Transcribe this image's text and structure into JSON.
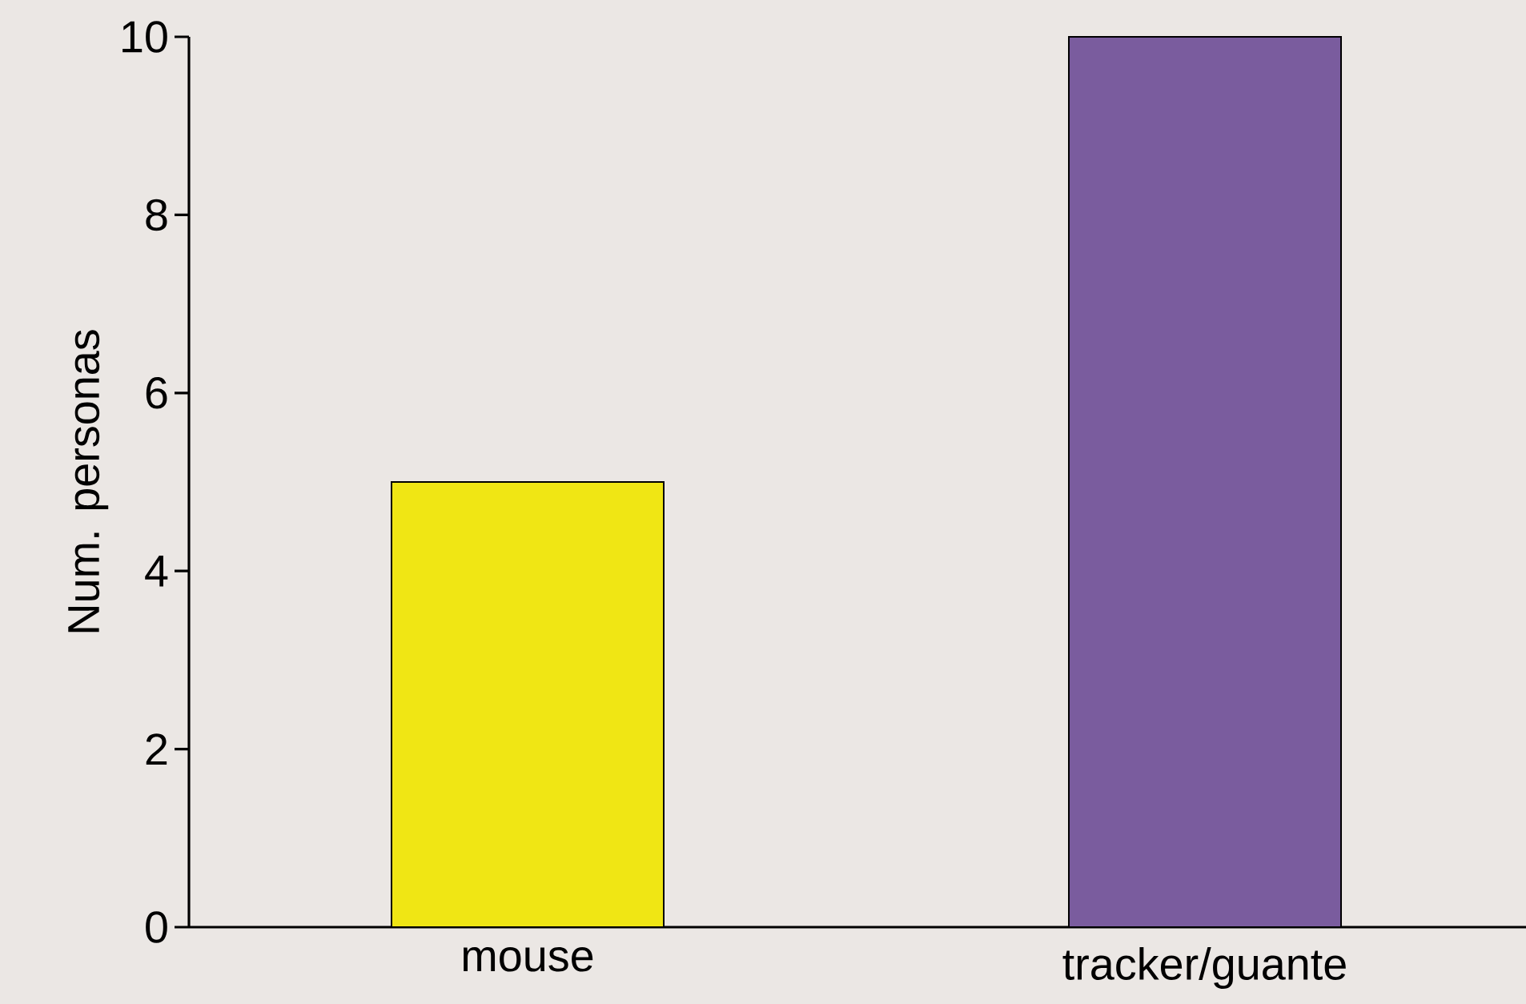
{
  "chart_data": {
    "type": "bar",
    "ylabel": "Num. personas",
    "categories": [
      "mouse",
      "tracker/guante"
    ],
    "values": [
      5,
      10
    ],
    "colors": [
      "#f0e614",
      "#7a5c9e"
    ],
    "ylim": [
      0,
      10
    ],
    "yticks": [
      0,
      2,
      4,
      6,
      8,
      10
    ],
    "grid": false
  }
}
